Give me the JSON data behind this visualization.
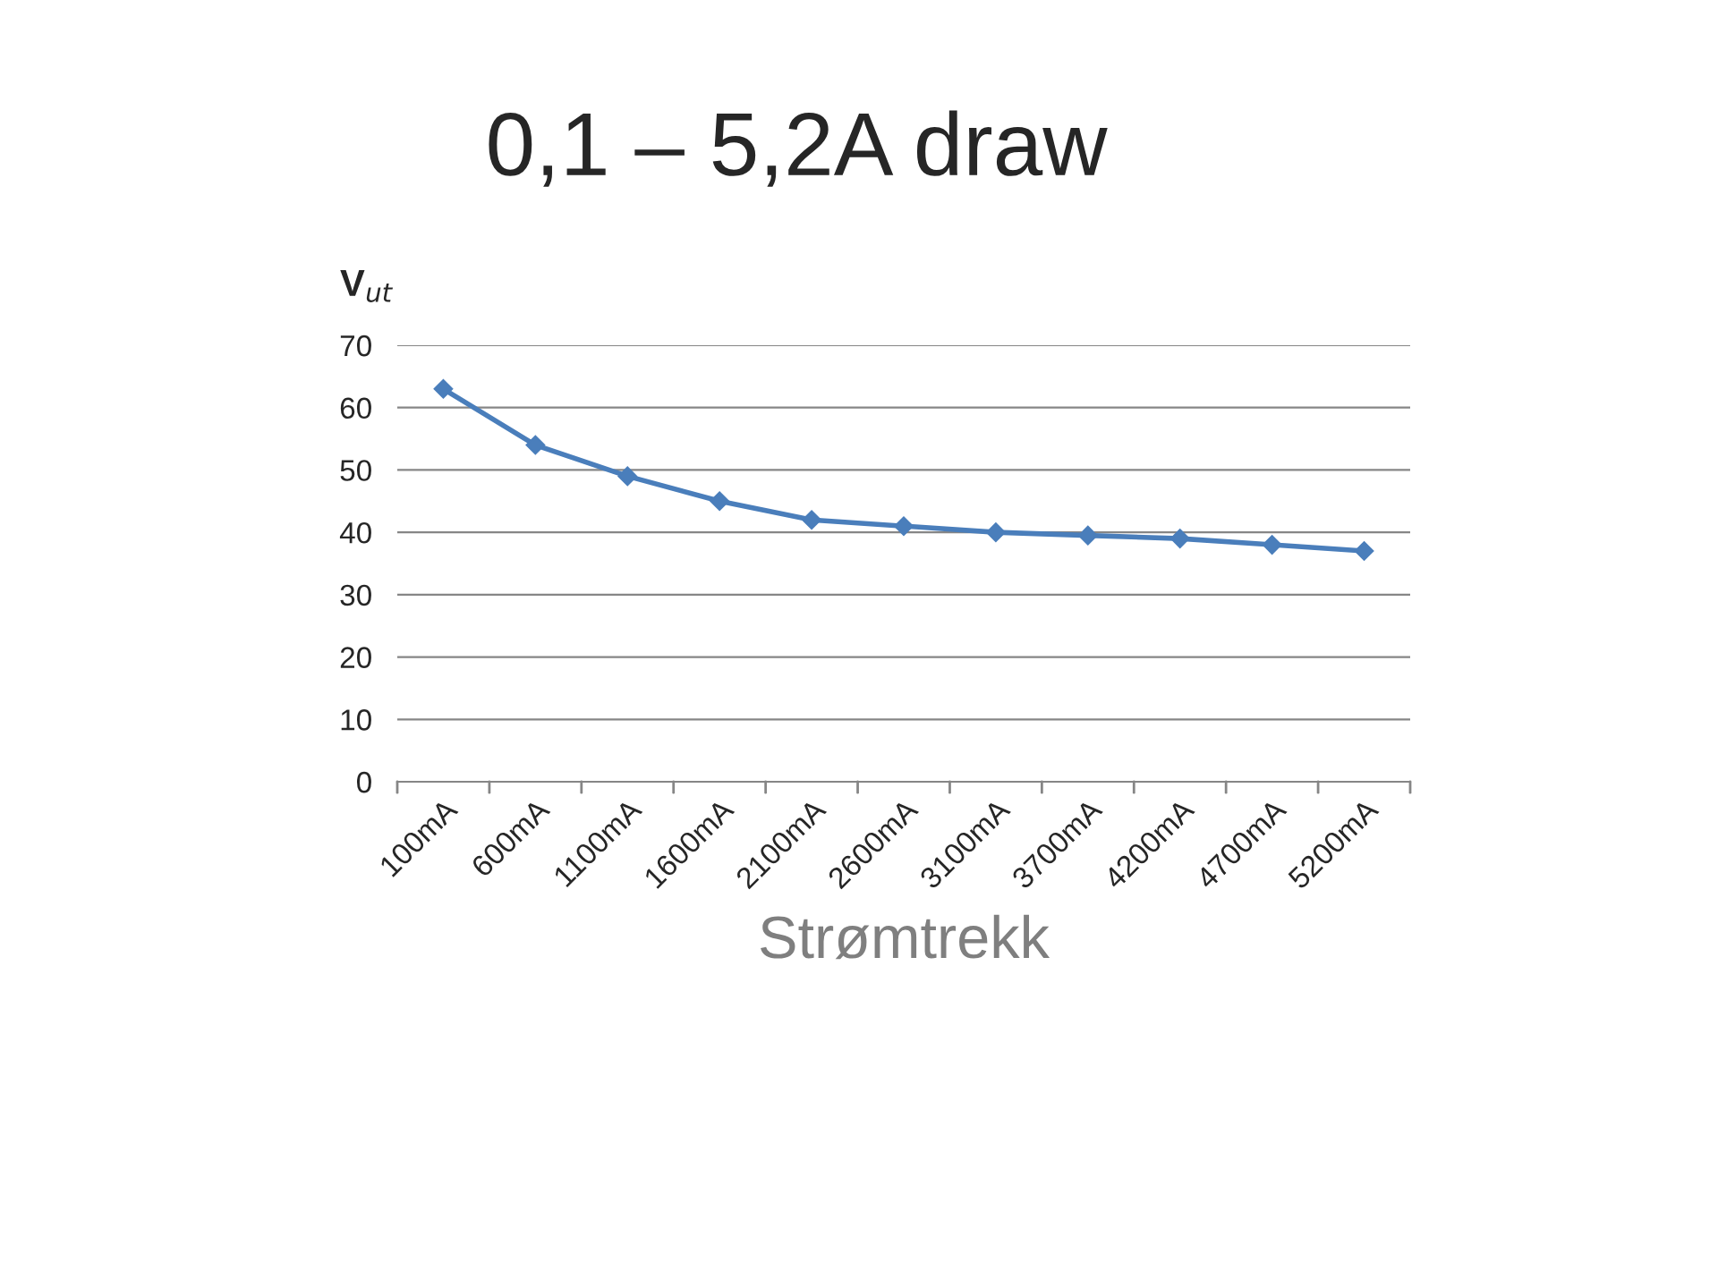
{
  "chart_data": {
    "type": "line",
    "title": "0,1 – 5,2A draw",
    "xlabel": "Strømtrekk",
    "ylabel": "V$_{ut}$",
    "categories": [
      "100mA",
      "600mA",
      "1100mA",
      "1600mA",
      "2100mA",
      "2600mA",
      "3100mA",
      "3700mA",
      "4200mA",
      "4700mA",
      "5200mA"
    ],
    "series": [
      {
        "color": "#4a7ebb",
        "values": [
          63,
          54,
          49,
          45,
          42,
          41,
          40,
          39.5,
          39,
          38,
          37
        ]
      }
    ],
    "ylim": [
      0,
      70
    ],
    "yticks": [
      0,
      10,
      20,
      30,
      40,
      50,
      60,
      70
    ],
    "grid": "y",
    "marker": "diamond",
    "line_style": "solid",
    "legend": false
  }
}
